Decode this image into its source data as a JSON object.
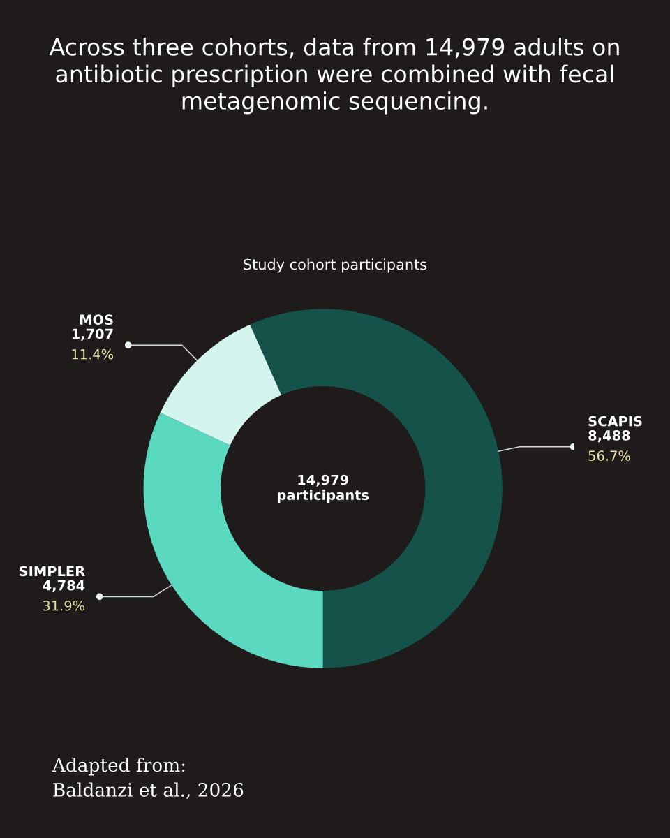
{
  "chart_data": {
    "type": "donut",
    "title": "Across three cohorts, data from 14,979 adults on antibiotic prescription were combined with fecal metagenomic sequencing.",
    "subtitle": "Study cohort participants",
    "categories": [
      "SCAPIS",
      "SIMPLER",
      "MOS"
    ],
    "values": [
      8488,
      4784,
      1707
    ],
    "colors": [
      "#14524a",
      "#5ad8c0",
      "#d4f5ee"
    ],
    "value_labels": [
      "8,488\n56.7%",
      "4,784\n31.9%",
      "1,707\n11.4%"
    ],
    "annotations": [
      "14,979\nparticipants",
      "Adapted from:\nBaldanzi et al., 2026"
    ]
  }
}
